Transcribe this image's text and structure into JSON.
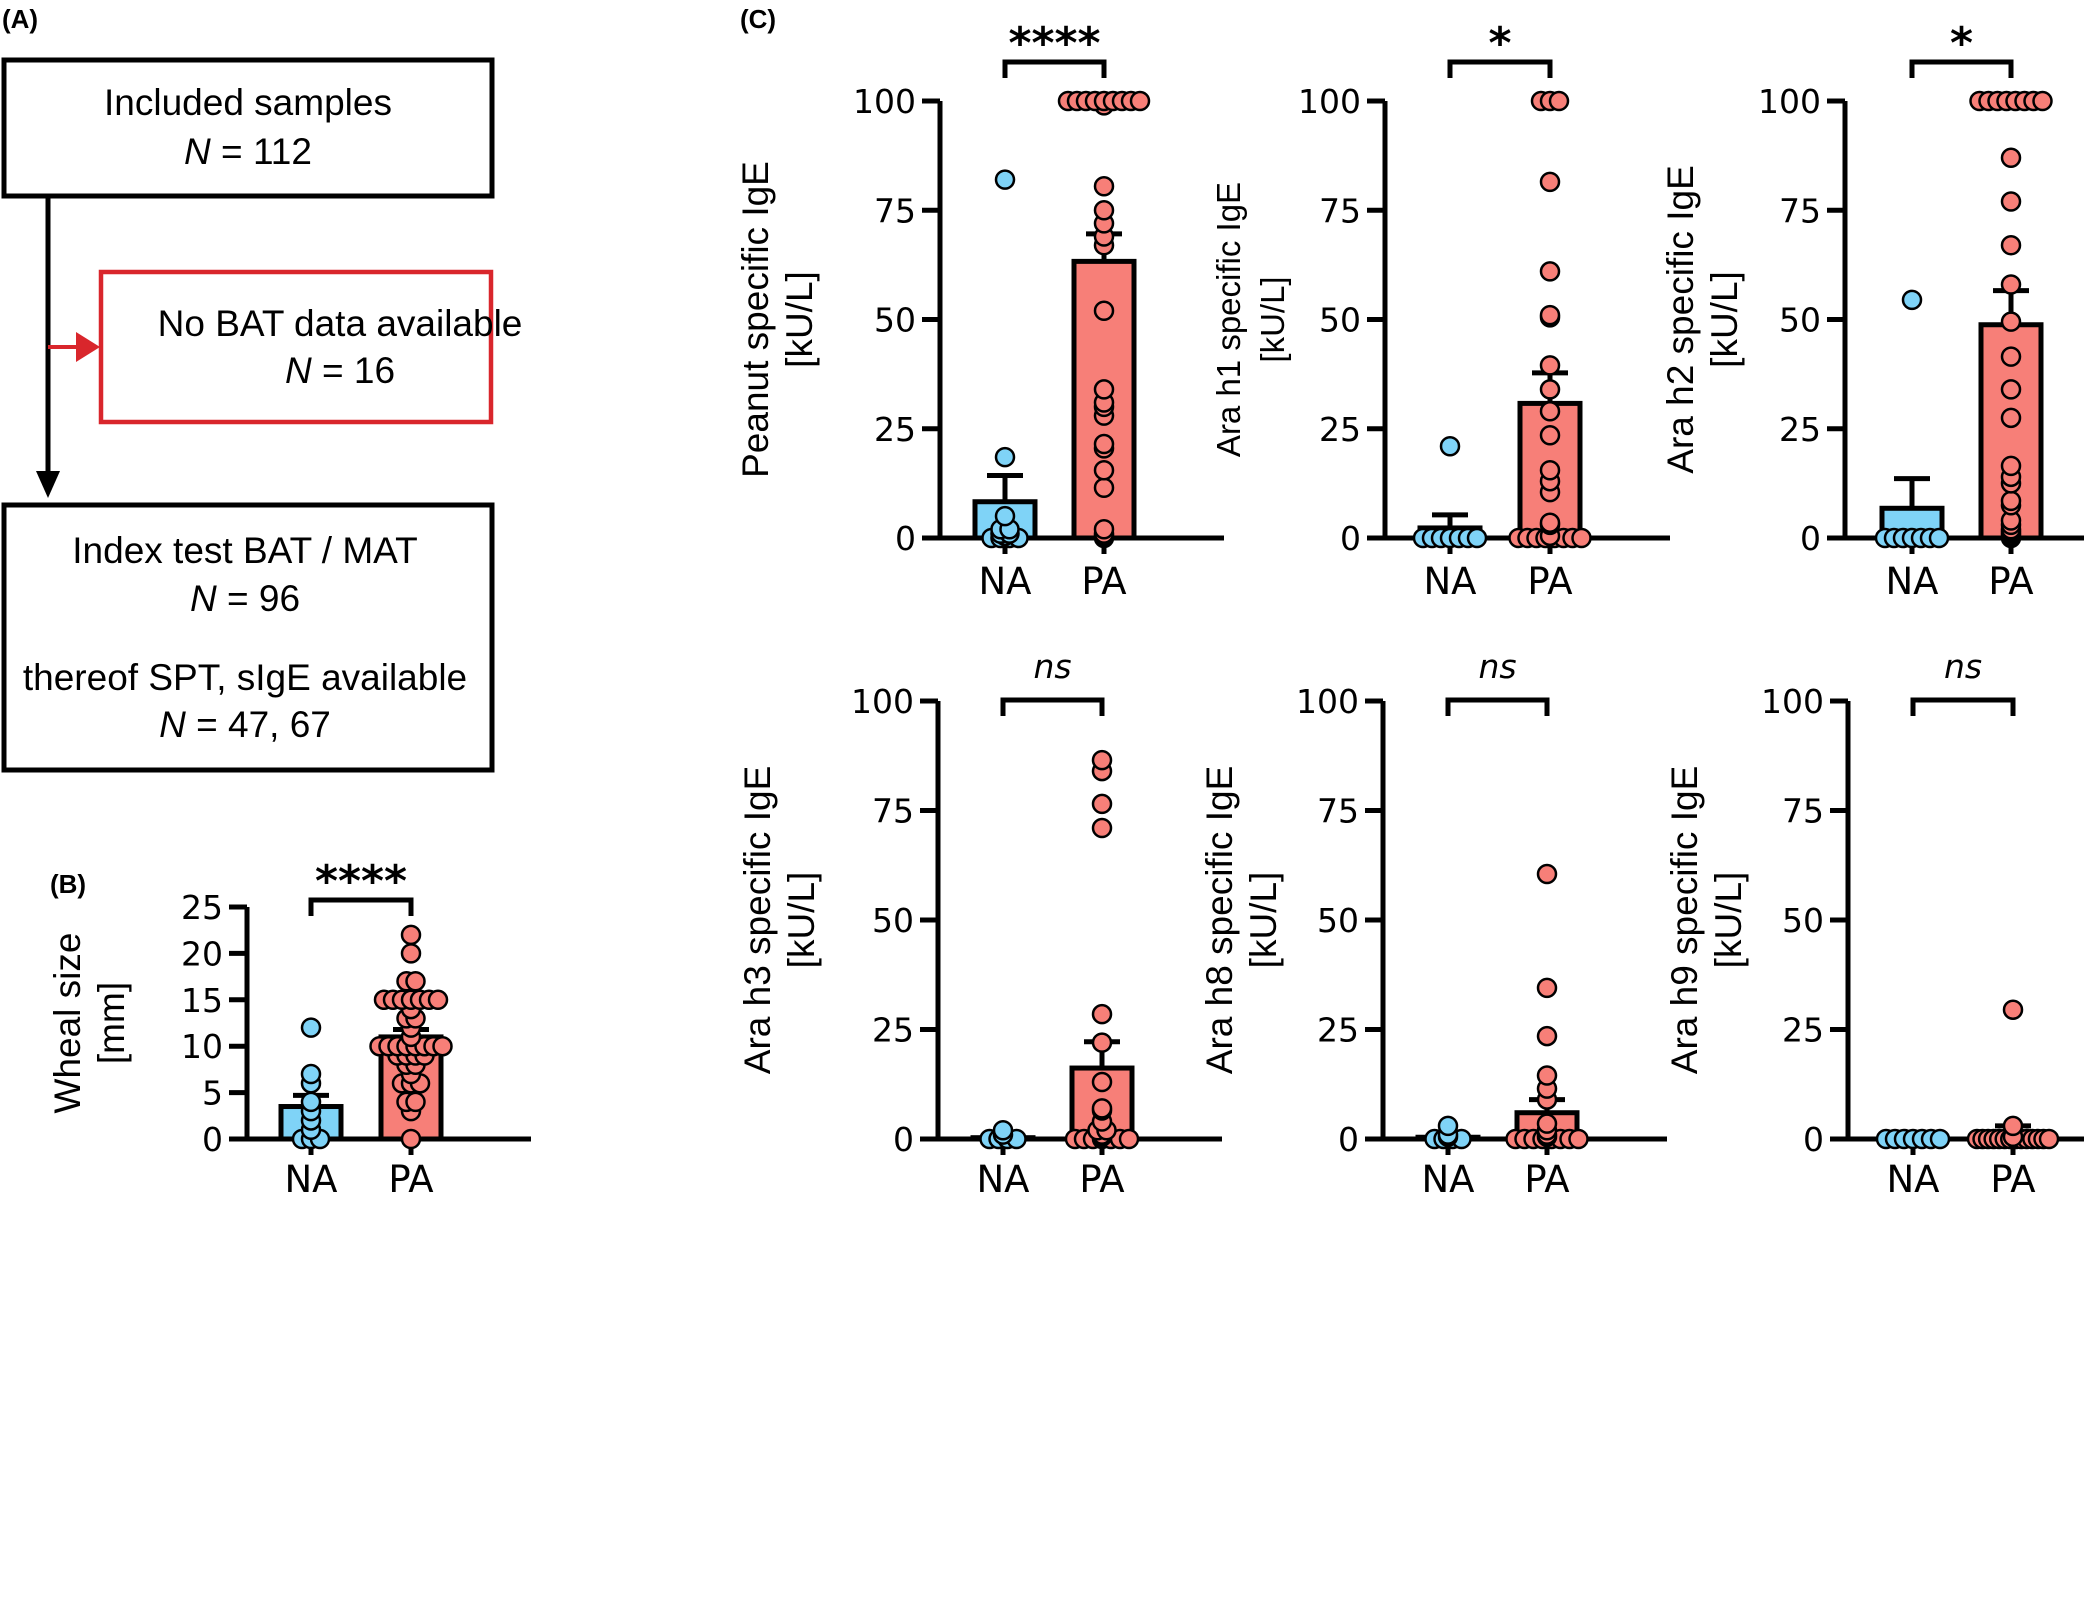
{
  "panel_labels": {
    "a": "(A)",
    "b": "(B)",
    "c": "(C)"
  },
  "flowchart": {
    "box1": {
      "line1": "Included samples",
      "n_label": "N",
      "n_value": " = 112"
    },
    "box2": {
      "line1": "No BAT data available",
      "n_label": "N",
      "n_value": " = 16"
    },
    "box3": {
      "line1": "Index test BAT / MAT",
      "n_label": "N",
      "n_value": " = 96",
      "line3": "thereof SPT, sIgE available",
      "n2_label": "N",
      "n2_value": " = 47, 67"
    },
    "colors": {
      "main": "#000000",
      "excluded": "#d9262c"
    }
  },
  "colors": {
    "NA": "#7fd3f7",
    "PA": "#f77f78",
    "stroke": "#000000"
  },
  "chart_data": [
    {
      "id": "B",
      "type": "bar",
      "title": "",
      "xlabel": "",
      "ylabel_line1": "Wheal size",
      "ylabel_line2": "[mm]",
      "categories": [
        "NA",
        "PA"
      ],
      "ylim": [
        0,
        25
      ],
      "yticks": [
        0,
        5,
        10,
        15,
        20,
        25
      ],
      "significance": "****",
      "series": [
        {
          "name": "NA",
          "mean": 3.5,
          "sem": 1.2,
          "points": [
            0,
            0,
            0,
            1,
            2,
            3,
            4,
            6,
            7,
            12
          ]
        },
        {
          "name": "PA",
          "mean": 11.0,
          "sem": 0.8,
          "points": [
            0,
            3,
            4,
            4,
            6,
            6,
            6,
            7,
            8,
            8,
            9,
            9,
            9,
            9,
            10,
            10,
            10,
            10,
            10,
            10,
            10,
            10,
            11,
            12,
            13,
            13,
            14,
            15,
            15,
            15,
            15,
            15,
            15,
            15,
            17,
            17,
            20,
            22
          ]
        }
      ]
    },
    {
      "id": "C1",
      "type": "bar",
      "ylabel_line1": "Peanut specific IgE",
      "ylabel_line2": "[kU/L]",
      "categories": [
        "NA",
        "PA"
      ],
      "ylim": [
        0,
        100
      ],
      "yticks": [
        0,
        25,
        50,
        75,
        100
      ],
      "significance": "****",
      "series": [
        {
          "name": "NA",
          "mean": 8.3,
          "sem": 6.0,
          "points": [
            0,
            0,
            0,
            0,
            0.5,
            1,
            1,
            2,
            2,
            5,
            18.5,
            82
          ]
        },
        {
          "name": "PA",
          "mean": 63.3,
          "sem": 6.3,
          "points": [
            0,
            0.5,
            1,
            2,
            11.5,
            15.5,
            20.5,
            21.5,
            28,
            30,
            31,
            34,
            52,
            67,
            69,
            72,
            75,
            80.5,
            99,
            100,
            100,
            100,
            100,
            100,
            100,
            100,
            100,
            100
          ]
        }
      ]
    },
    {
      "id": "C2",
      "type": "bar",
      "ylabel_line1": "Ara h1 specific IgE",
      "ylabel_line2": "[kU/L]",
      "categories": [
        "NA",
        "PA"
      ],
      "ylim": [
        0,
        100
      ],
      "yticks": [
        0,
        25,
        50,
        75,
        100
      ],
      "significance": "*",
      "series": [
        {
          "name": "NA",
          "mean": 2.3,
          "sem": 3.0,
          "points": [
            0,
            0,
            0,
            0,
            0,
            0,
            0,
            21
          ]
        },
        {
          "name": "PA",
          "mean": 30.8,
          "sem": 7.0,
          "points": [
            0,
            0,
            0,
            0,
            0,
            0,
            0,
            0,
            0.5,
            3,
            3.5,
            10.5,
            13,
            15.5,
            23.5,
            29,
            34,
            39.5,
            50.5,
            51,
            61,
            81.5,
            100,
            100,
            100
          ]
        }
      ]
    },
    {
      "id": "C3",
      "type": "bar",
      "ylabel_line1": "Ara h2 specific IgE",
      "ylabel_line2": "[kU/L]",
      "categories": [
        "NA",
        "PA"
      ],
      "ylim": [
        0,
        100
      ],
      "yticks": [
        0,
        25,
        50,
        75,
        100
      ],
      "significance": "*",
      "series": [
        {
          "name": "NA",
          "mean": 6.8,
          "sem": 6.8,
          "points": [
            0,
            0,
            0,
            0,
            0,
            0,
            0,
            54.5
          ]
        },
        {
          "name": "PA",
          "mean": 48.8,
          "sem": 7.8,
          "points": [
            0,
            0.5,
            1,
            1.5,
            2,
            3,
            4,
            7.5,
            8.5,
            12.5,
            14,
            16.5,
            27.5,
            34,
            41.5,
            49.5,
            58,
            67,
            77,
            87,
            100,
            100,
            100,
            100,
            100,
            100,
            100,
            100
          ]
        }
      ]
    },
    {
      "id": "C4",
      "type": "bar",
      "ylabel_line1": "Ara h3 specific IgE",
      "ylabel_line2": "[kU/L]",
      "categories": [
        "NA",
        "PA"
      ],
      "ylim": [
        0,
        100
      ],
      "yticks": [
        0,
        25,
        50,
        75,
        100
      ],
      "significance": "ns",
      "series": [
        {
          "name": "NA",
          "mean": 0.3,
          "sem": 0.2,
          "points": [
            0,
            0,
            0,
            0,
            1,
            2
          ]
        },
        {
          "name": "PA",
          "mean": 16.2,
          "sem": 6.0,
          "points": [
            0,
            0,
            0,
            0,
            0,
            0,
            0,
            0.5,
            1,
            2,
            2,
            4,
            6.5,
            7,
            13,
            22,
            28.5,
            71,
            76.5,
            84,
            86.5
          ]
        }
      ]
    },
    {
      "id": "C5",
      "type": "bar",
      "ylabel_line1": "Ara h8 specific IgE",
      "ylabel_line2": "[kU/L]",
      "categories": [
        "NA",
        "PA"
      ],
      "ylim": [
        0,
        100
      ],
      "yticks": [
        0,
        25,
        50,
        75,
        100
      ],
      "significance": "ns",
      "series": [
        {
          "name": "NA",
          "mean": 0.4,
          "sem": 0.3,
          "points": [
            0,
            0,
            0,
            0,
            0.5,
            1,
            3
          ]
        },
        {
          "name": "PA",
          "mean": 6.0,
          "sem": 3.0,
          "points": [
            0,
            0,
            0,
            0,
            0,
            0,
            0,
            0,
            0.5,
            1,
            2,
            3.5,
            9,
            11.5,
            14.5,
            23.5,
            34.5,
            60.5
          ]
        }
      ]
    },
    {
      "id": "C6",
      "type": "bar",
      "ylabel_line1": "Ara h9 specific IgE",
      "ylabel_line2": "[kU/L]",
      "categories": [
        "NA",
        "PA"
      ],
      "ylim": [
        0,
        100
      ],
      "yticks": [
        0,
        25,
        50,
        75,
        100
      ],
      "significance": "ns",
      "series": [
        {
          "name": "NA",
          "mean": 0.1,
          "sem": 0.05,
          "points": [
            0,
            0,
            0,
            0,
            0,
            0,
            0
          ]
        },
        {
          "name": "PA",
          "mean": 1.2,
          "sem": 1.8,
          "points": [
            0,
            0,
            0,
            0,
            0,
            0,
            0,
            0,
            0,
            0,
            0,
            0,
            0,
            0,
            0.5,
            3,
            29.5
          ]
        }
      ]
    }
  ]
}
